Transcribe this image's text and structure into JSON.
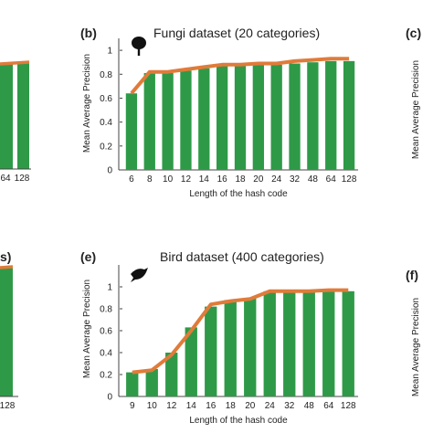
{
  "colors": {
    "bar": "#2e9a48",
    "line": "#e07b3a",
    "axis": "#444444",
    "text": "#222222"
  },
  "panels": {
    "a": {
      "x_tick_labels": [
        "64",
        "128"
      ]
    },
    "b": {
      "letter": "(b)",
      "title": "Fungi dataset (20 categories)",
      "icon": "tree-icon"
    },
    "c": {
      "letter": "(c)",
      "ylabel": "Mean Average Precision"
    },
    "d": {
      "letter": "s)",
      "x_tick_labels": [
        "128"
      ]
    },
    "e": {
      "letter": "(e)",
      "title": "Bird dataset (400 categories)",
      "icon": "bird-icon"
    },
    "f": {
      "letter": "(f)",
      "ylabel": "Mean Average Precision"
    }
  },
  "chart_data": [
    {
      "type": "bar",
      "panel": "b",
      "title": "Fungi dataset (20 categories)",
      "xlabel": "Length of the hash code",
      "ylabel": "Mean Average Precision",
      "categories": [
        "6",
        "8",
        "10",
        "12",
        "14",
        "16",
        "18",
        "20",
        "24",
        "32",
        "48",
        "64",
        "128"
      ],
      "values": [
        0.64,
        0.81,
        0.81,
        0.83,
        0.85,
        0.87,
        0.87,
        0.88,
        0.88,
        0.89,
        0.9,
        0.91,
        0.91
      ],
      "line_values": [
        0.64,
        0.82,
        0.82,
        0.84,
        0.86,
        0.88,
        0.88,
        0.89,
        0.89,
        0.91,
        0.92,
        0.93,
        0.93
      ],
      "yticks": [
        "0",
        "0.2",
        "0.4",
        "0.6",
        "0.8",
        "1"
      ],
      "ylim": [
        0,
        1.1
      ],
      "grid": false
    },
    {
      "type": "bar",
      "panel": "e",
      "title": "Bird dataset (400 categories)",
      "xlabel": "Length of the hash code",
      "ylabel": "Mean Average Precision",
      "categories": [
        "9",
        "10",
        "12",
        "14",
        "16",
        "18",
        "20",
        "24",
        "32",
        "48",
        "64",
        "128"
      ],
      "values": [
        0.22,
        0.25,
        0.4,
        0.63,
        0.82,
        0.88,
        0.9,
        0.96,
        0.96,
        0.96,
        0.96,
        0.96
      ],
      "line_values": [
        0.22,
        0.24,
        0.38,
        0.6,
        0.84,
        0.87,
        0.89,
        0.96,
        0.96,
        0.96,
        0.97,
        0.97
      ],
      "yticks": [
        "0",
        "0.2",
        "0.4",
        "0.6",
        "0.8",
        "1"
      ],
      "ylim": [
        0,
        1.2
      ],
      "grid": false
    }
  ]
}
